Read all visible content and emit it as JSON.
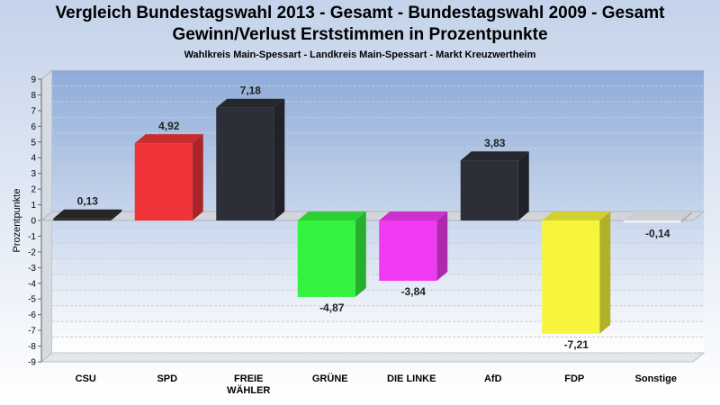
{
  "title_line1": "Vergleich Bundestagswahl 2013 - Gesamt - Bundestagswahl 2009 - Gesamt",
  "title_line2": "Gewinn/Verlust Erststimmen in Prozentpunkte",
  "subtitle": "Wahlkreis Main-Spessart - Landkreis Main-Spessart - Markt Kreuzwertheim",
  "chart_data": {
    "type": "bar",
    "title": "Vergleich Bundestagswahl 2013 - Gesamt - Bundestagswahl 2009 - Gesamt",
    "subtitle": "Gewinn/Verlust Erststimmen in Prozentpunkte",
    "ylabel": "Prozentpunkte",
    "xlabel": "",
    "ylim": [
      -9,
      9
    ],
    "yticks": [
      "9",
      "8",
      "7",
      "6",
      "5",
      "4",
      "3",
      "2",
      "1",
      "0",
      "-1",
      "-2",
      "-3",
      "-4",
      "-5",
      "-6",
      "-7",
      "-8",
      "-9"
    ],
    "grid": true,
    "categories": [
      {
        "lines": [
          "CSU"
        ]
      },
      {
        "lines": [
          "SPD"
        ]
      },
      {
        "lines": [
          "FREIE",
          "WÄHLER"
        ]
      },
      {
        "lines": [
          "GRÜNE"
        ]
      },
      {
        "lines": [
          "DIE LINKE"
        ]
      },
      {
        "lines": [
          "AfD"
        ]
      },
      {
        "lines": [
          "FDP"
        ]
      },
      {
        "lines": [
          "Sonstige"
        ]
      }
    ],
    "values": [
      0.13,
      4.92,
      7.18,
      -4.87,
      -3.84,
      3.83,
      -7.21,
      -0.14
    ],
    "value_labels": [
      "0,13",
      "4,92",
      "7,18",
      "-4,87",
      "-3,84",
      "3,83",
      "-7,21",
      "-0,14"
    ],
    "colors": [
      "#2b2b2b",
      "#ee3438",
      "#2c2f37",
      "#34f33e",
      "#f03af1",
      "#2c2f37",
      "#f6f53c",
      "#f0f2f6"
    ]
  }
}
